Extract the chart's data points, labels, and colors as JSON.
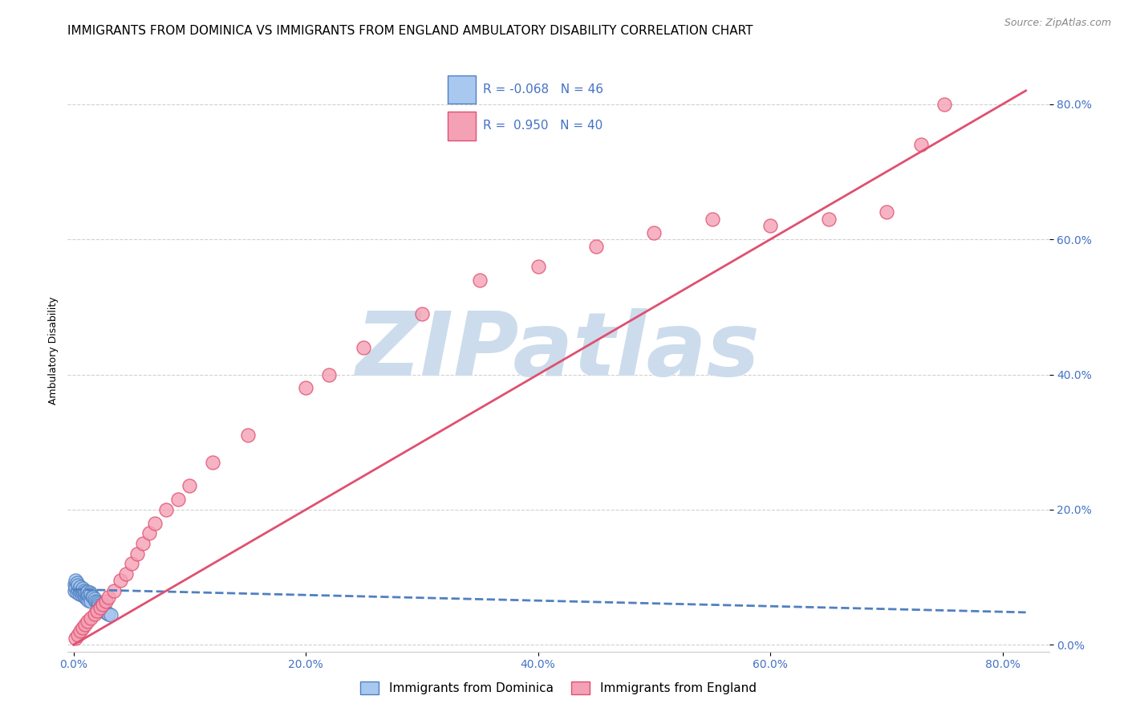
{
  "title": "IMMIGRANTS FROM DOMINICA VS IMMIGRANTS FROM ENGLAND AMBULATORY DISABILITY CORRELATION CHART",
  "source": "Source: ZipAtlas.com",
  "ylabel": "Ambulatory Disability",
  "xlabel_ticks": [
    "0.0%",
    "20.0%",
    "40.0%",
    "60.0%",
    "80.0%"
  ],
  "ylabel_ticks": [
    "0.0%",
    "20.0%",
    "40.0%",
    "60.0%",
    "80.0%"
  ],
  "xlim": [
    -0.005,
    0.84
  ],
  "ylim": [
    -0.01,
    0.88
  ],
  "legend1_label": "Immigrants from Dominica",
  "legend2_label": "Immigrants from England",
  "R1": "-0.068",
  "N1": "46",
  "R2": "0.950",
  "N2": "40",
  "color_blue": "#a8c8f0",
  "color_pink": "#f4a0b5",
  "color_blue_dark": "#5080c0",
  "color_pink_dark": "#e05070",
  "watermark": "ZIPatlas",
  "watermark_color": "#ccdcec",
  "title_fontsize": 11,
  "axis_label_fontsize": 9,
  "tick_fontsize": 10,
  "legend_fontsize": 11,
  "blue_scatter_x": [
    0.001,
    0.001,
    0.002,
    0.002,
    0.003,
    0.003,
    0.004,
    0.004,
    0.005,
    0.005,
    0.006,
    0.006,
    0.007,
    0.007,
    0.008,
    0.008,
    0.009,
    0.009,
    0.01,
    0.01,
    0.011,
    0.011,
    0.012,
    0.012,
    0.013,
    0.013,
    0.014,
    0.014,
    0.015,
    0.015,
    0.016,
    0.017,
    0.018,
    0.019,
    0.02,
    0.021,
    0.022,
    0.023,
    0.024,
    0.025,
    0.026,
    0.027,
    0.028,
    0.029,
    0.03,
    0.032
  ],
  "blue_scatter_y": [
    0.08,
    0.09,
    0.085,
    0.095,
    0.078,
    0.092,
    0.082,
    0.088,
    0.075,
    0.083,
    0.079,
    0.086,
    0.074,
    0.081,
    0.077,
    0.084,
    0.073,
    0.08,
    0.07,
    0.078,
    0.068,
    0.076,
    0.072,
    0.079,
    0.066,
    0.074,
    0.069,
    0.077,
    0.065,
    0.075,
    0.072,
    0.07,
    0.068,
    0.065,
    0.063,
    0.061,
    0.059,
    0.057,
    0.056,
    0.054,
    0.052,
    0.05,
    0.048,
    0.047,
    0.046,
    0.044
  ],
  "pink_scatter_x": [
    0.002,
    0.004,
    0.006,
    0.008,
    0.01,
    0.012,
    0.015,
    0.018,
    0.02,
    0.023,
    0.025,
    0.028,
    0.03,
    0.035,
    0.04,
    0.045,
    0.05,
    0.055,
    0.06,
    0.065,
    0.07,
    0.08,
    0.09,
    0.1,
    0.12,
    0.15,
    0.2,
    0.22,
    0.25,
    0.3,
    0.35,
    0.4,
    0.45,
    0.5,
    0.55,
    0.6,
    0.65,
    0.7,
    0.73,
    0.75
  ],
  "pink_scatter_y": [
    0.01,
    0.015,
    0.02,
    0.025,
    0.03,
    0.035,
    0.04,
    0.045,
    0.05,
    0.055,
    0.06,
    0.065,
    0.07,
    0.08,
    0.095,
    0.105,
    0.12,
    0.135,
    0.15,
    0.165,
    0.18,
    0.2,
    0.215,
    0.235,
    0.27,
    0.31,
    0.38,
    0.4,
    0.44,
    0.49,
    0.54,
    0.56,
    0.59,
    0.61,
    0.63,
    0.62,
    0.63,
    0.64,
    0.74,
    0.8
  ],
  "blue_line_x": [
    0.0,
    0.82
  ],
  "blue_line_y": [
    0.082,
    0.048
  ],
  "pink_line_x": [
    0.0,
    0.82
  ],
  "pink_line_y": [
    0.0,
    0.82
  ]
}
